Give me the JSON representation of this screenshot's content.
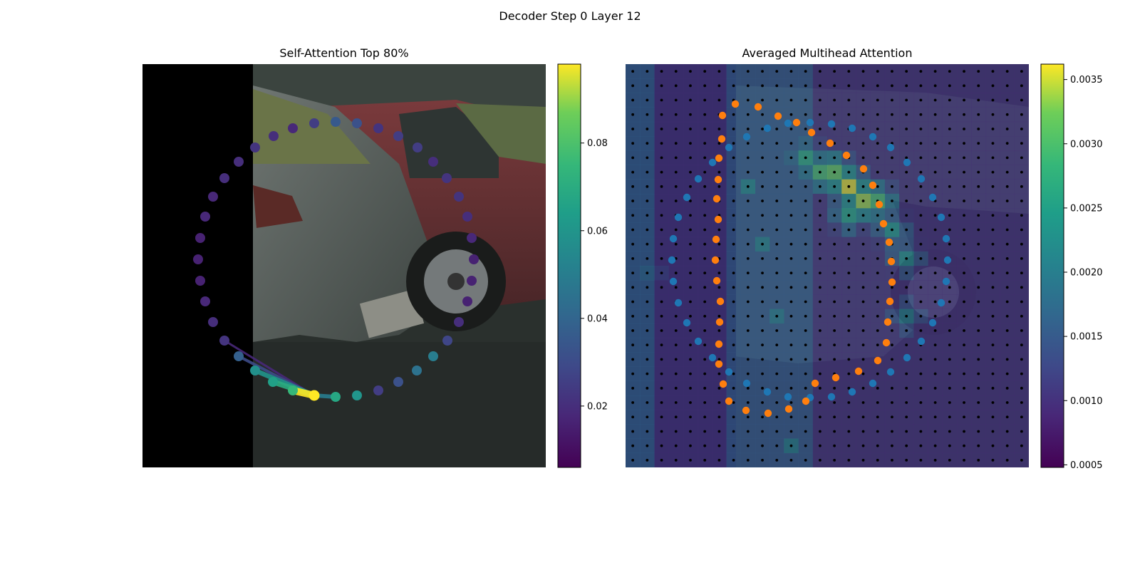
{
  "figure": {
    "title": "Decoder Step 0 Layer 12"
  },
  "chart_data": [
    {
      "type": "scatter",
      "title": "Self-Attention Top 80%",
      "background": "camera image of parked cars (left part masked black)",
      "colormap": "viridis",
      "colorbar": {
        "range": [
          0.006,
          0.098
        ],
        "ticks": [
          0.02,
          0.04,
          0.06,
          0.08
        ],
        "tick_labels": [
          "0.02",
          "0.04",
          "0.06",
          "0.08"
        ]
      },
      "query_point_index": 0,
      "points": [
        {
          "x": 441,
          "y": 555,
          "v": 0.098
        },
        {
          "x": 471,
          "y": 557,
          "v": 0.068
        },
        {
          "x": 501,
          "y": 555,
          "v": 0.06
        },
        {
          "x": 531,
          "y": 548,
          "v": 0.025
        },
        {
          "x": 559,
          "y": 536,
          "v": 0.032
        },
        {
          "x": 585,
          "y": 520,
          "v": 0.045
        },
        {
          "x": 608,
          "y": 500,
          "v": 0.05
        },
        {
          "x": 628,
          "y": 478,
          "v": 0.028
        },
        {
          "x": 644,
          "y": 452,
          "v": 0.02
        },
        {
          "x": 656,
          "y": 423,
          "v": 0.016
        },
        {
          "x": 662,
          "y": 394,
          "v": 0.016
        },
        {
          "x": 665,
          "y": 364,
          "v": 0.016
        },
        {
          "x": 662,
          "y": 334,
          "v": 0.018
        },
        {
          "x": 656,
          "y": 304,
          "v": 0.02
        },
        {
          "x": 644,
          "y": 276,
          "v": 0.022
        },
        {
          "x": 627,
          "y": 250,
          "v": 0.022
        },
        {
          "x": 608,
          "y": 227,
          "v": 0.02
        },
        {
          "x": 586,
          "y": 207,
          "v": 0.025
        },
        {
          "x": 559,
          "y": 191,
          "v": 0.025
        },
        {
          "x": 531,
          "y": 180,
          "v": 0.022
        },
        {
          "x": 501,
          "y": 173,
          "v": 0.032
        },
        {
          "x": 471,
          "y": 171,
          "v": 0.035
        },
        {
          "x": 441,
          "y": 173,
          "v": 0.025
        },
        {
          "x": 411,
          "y": 180,
          "v": 0.018
        },
        {
          "x": 384,
          "y": 191,
          "v": 0.02
        },
        {
          "x": 358,
          "y": 207,
          "v": 0.022
        },
        {
          "x": 335,
          "y": 227,
          "v": 0.02
        },
        {
          "x": 315,
          "y": 250,
          "v": 0.02
        },
        {
          "x": 299,
          "y": 276,
          "v": 0.018
        },
        {
          "x": 288,
          "y": 304,
          "v": 0.018
        },
        {
          "x": 281,
          "y": 334,
          "v": 0.016
        },
        {
          "x": 278,
          "y": 364,
          "v": 0.016
        },
        {
          "x": 281,
          "y": 394,
          "v": 0.016
        },
        {
          "x": 288,
          "y": 423,
          "v": 0.018
        },
        {
          "x": 299,
          "y": 452,
          "v": 0.02
        },
        {
          "x": 315,
          "y": 478,
          "v": 0.022
        },
        {
          "x": 335,
          "y": 500,
          "v": 0.038
        },
        {
          "x": 358,
          "y": 520,
          "v": 0.058
        },
        {
          "x": 383,
          "y": 536,
          "v": 0.065
        },
        {
          "x": 411,
          "y": 548,
          "v": 0.075
        }
      ],
      "attention_links": [
        {
          "from": 0,
          "to": 39,
          "v": 0.098
        },
        {
          "from": 0,
          "to": 38,
          "v": 0.07
        },
        {
          "from": 0,
          "to": 37,
          "v": 0.06
        },
        {
          "from": 0,
          "to": 1,
          "v": 0.05
        },
        {
          "from": 0,
          "to": 36,
          "v": 0.03
        },
        {
          "from": 0,
          "to": 35,
          "v": 0.018
        }
      ]
    },
    {
      "type": "heatmap",
      "title": "Averaged Multihead Attention",
      "background": "camera image of parked cars with attention overlay",
      "colormap": "viridis",
      "colorbar": {
        "range": [
          0.00048,
          0.00362
        ],
        "ticks": [
          0.0005,
          0.001,
          0.0015,
          0.002,
          0.0025,
          0.003,
          0.0035
        ],
        "tick_labels": [
          "0.0005",
          "0.0010",
          "0.0015",
          "0.0020",
          "0.0025",
          "0.0030",
          "0.0035"
        ]
      },
      "grid": {
        "rows": 28,
        "cols": 28
      },
      "hotspots": [
        {
          "col": 15,
          "row": 8,
          "v": 0.0036
        },
        {
          "col": 16,
          "row": 9,
          "v": 0.0034
        },
        {
          "col": 14,
          "row": 7,
          "v": 0.0032
        },
        {
          "col": 13,
          "row": 7,
          "v": 0.003
        },
        {
          "col": 17,
          "row": 9,
          "v": 0.003
        },
        {
          "col": 12,
          "row": 6,
          "v": 0.0027
        },
        {
          "col": 15,
          "row": 10,
          "v": 0.0026
        },
        {
          "col": 18,
          "row": 11,
          "v": 0.0024
        },
        {
          "col": 19,
          "row": 13,
          "v": 0.0023
        },
        {
          "col": 8,
          "row": 8,
          "v": 0.0022
        },
        {
          "col": 9,
          "row": 12,
          "v": 0.0021
        },
        {
          "col": 10,
          "row": 17,
          "v": 0.002
        },
        {
          "col": 19,
          "row": 17,
          "v": 0.0021
        },
        {
          "col": 11,
          "row": 26,
          "v": 0.0021
        },
        {
          "col": 1,
          "row": 14,
          "v": 0.0018
        }
      ],
      "series": [
        {
          "color": "#1f77b4",
          "points": [
            {
              "x": 1106,
              "y": 173
            },
            {
              "x": 1137,
              "y": 172
            },
            {
              "x": 1167,
              "y": 174
            },
            {
              "x": 1196,
              "y": 180
            },
            {
              "x": 1225,
              "y": 192
            },
            {
              "x": 1250,
              "y": 207
            },
            {
              "x": 1273,
              "y": 228
            },
            {
              "x": 1293,
              "y": 251
            },
            {
              "x": 1309,
              "y": 277
            },
            {
              "x": 1321,
              "y": 305
            },
            {
              "x": 1328,
              "y": 335
            },
            {
              "x": 1330,
              "y": 365
            },
            {
              "x": 1328,
              "y": 395
            },
            {
              "x": 1321,
              "y": 425
            },
            {
              "x": 1309,
              "y": 453
            },
            {
              "x": 1293,
              "y": 479
            },
            {
              "x": 1273,
              "y": 502
            },
            {
              "x": 1250,
              "y": 522
            },
            {
              "x": 1225,
              "y": 538
            },
            {
              "x": 1196,
              "y": 550
            },
            {
              "x": 1167,
              "y": 557
            },
            {
              "x": 1137,
              "y": 558
            },
            {
              "x": 1106,
              "y": 557
            },
            {
              "x": 1077,
              "y": 550
            },
            {
              "x": 1048,
              "y": 538
            },
            {
              "x": 1023,
              "y": 522
            },
            {
              "x": 1000,
              "y": 502
            },
            {
              "x": 980,
              "y": 479
            },
            {
              "x": 964,
              "y": 453
            },
            {
              "x": 952,
              "y": 425
            },
            {
              "x": 945,
              "y": 395
            },
            {
              "x": 943,
              "y": 365
            },
            {
              "x": 945,
              "y": 335
            },
            {
              "x": 952,
              "y": 305
            },
            {
              "x": 964,
              "y": 277
            },
            {
              "x": 980,
              "y": 251
            },
            {
              "x": 1000,
              "y": 228
            },
            {
              "x": 1023,
              "y": 207
            },
            {
              "x": 1048,
              "y": 192
            },
            {
              "x": 1077,
              "y": 180
            }
          ]
        },
        {
          "color": "#ff7f0e",
          "points": [
            {
              "x": 1014,
              "y": 162
            },
            {
              "x": 1032,
              "y": 146
            },
            {
              "x": 1064,
              "y": 150
            },
            {
              "x": 1092,
              "y": 163
            },
            {
              "x": 1118,
              "y": 172
            },
            {
              "x": 1139,
              "y": 186
            },
            {
              "x": 1165,
              "y": 201
            },
            {
              "x": 1188,
              "y": 218
            },
            {
              "x": 1212,
              "y": 237
            },
            {
              "x": 1225,
              "y": 260
            },
            {
              "x": 1234,
              "y": 287
            },
            {
              "x": 1240,
              "y": 314
            },
            {
              "x": 1248,
              "y": 340
            },
            {
              "x": 1251,
              "y": 367
            },
            {
              "x": 1252,
              "y": 396
            },
            {
              "x": 1249,
              "y": 423
            },
            {
              "x": 1246,
              "y": 452
            },
            {
              "x": 1244,
              "y": 481
            },
            {
              "x": 1232,
              "y": 506
            },
            {
              "x": 1205,
              "y": 521
            },
            {
              "x": 1173,
              "y": 530
            },
            {
              "x": 1144,
              "y": 538
            },
            {
              "x": 1131,
              "y": 563
            },
            {
              "x": 1107,
              "y": 574
            },
            {
              "x": 1078,
              "y": 580
            },
            {
              "x": 1047,
              "y": 576
            },
            {
              "x": 1023,
              "y": 563
            },
            {
              "x": 1015,
              "y": 539
            },
            {
              "x": 1009,
              "y": 511
            },
            {
              "x": 1009,
              "y": 483
            },
            {
              "x": 1010,
              "y": 452
            },
            {
              "x": 1011,
              "y": 423
            },
            {
              "x": 1006,
              "y": 394
            },
            {
              "x": 1004,
              "y": 365
            },
            {
              "x": 1005,
              "y": 336
            },
            {
              "x": 1008,
              "y": 308
            },
            {
              "x": 1006,
              "y": 279
            },
            {
              "x": 1008,
              "y": 252
            },
            {
              "x": 1009,
              "y": 222
            },
            {
              "x": 1013,
              "y": 195
            }
          ]
        }
      ]
    }
  ]
}
